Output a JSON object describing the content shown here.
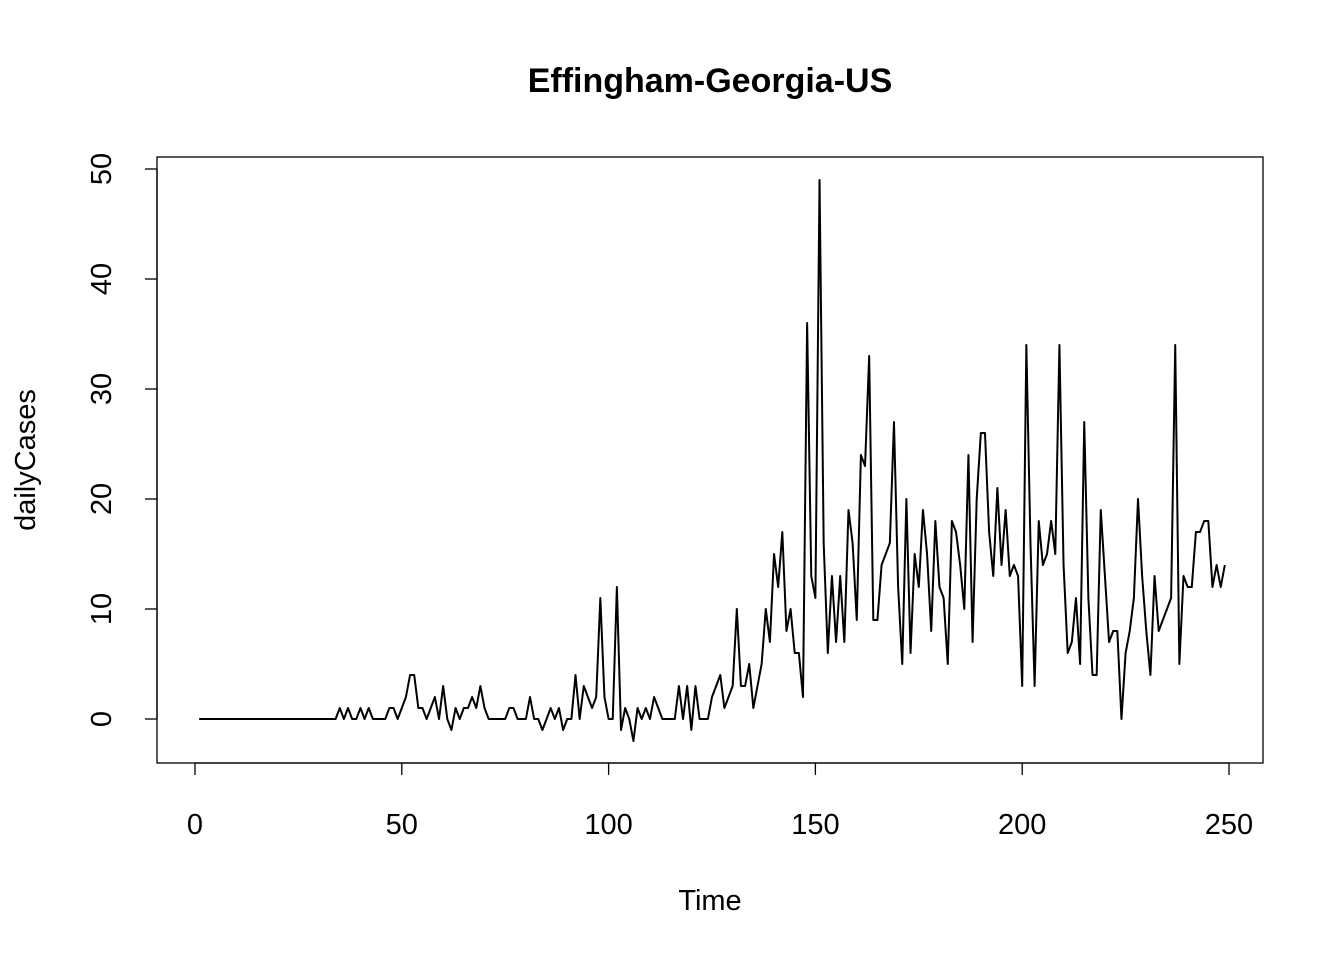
{
  "chart_data": {
    "type": "line",
    "title": "Effingham-Georgia-US",
    "xlabel": "Time",
    "ylabel": "dailyCases",
    "xlim": [
      0,
      250
    ],
    "ylim": [
      -4,
      50
    ],
    "x_ticks": [
      0,
      50,
      100,
      150,
      200,
      250
    ],
    "y_ticks": [
      0,
      10,
      20,
      30,
      40,
      50
    ],
    "x_tick_labels": [
      "0",
      "50",
      "100",
      "150",
      "200",
      "250"
    ],
    "y_tick_labels": [
      "0",
      "10",
      "20",
      "30",
      "40",
      "50"
    ],
    "grid": false,
    "legend": "none",
    "line_color": "#000000",
    "series": [
      {
        "x_start": 1,
        "x_step": 1,
        "values": [
          0,
          0,
          0,
          0,
          0,
          0,
          0,
          0,
          0,
          0,
          0,
          0,
          0,
          0,
          0,
          0,
          0,
          0,
          0,
          0,
          0,
          0,
          0,
          0,
          0,
          0,
          0,
          0,
          0,
          0,
          0,
          0,
          0,
          0,
          1,
          0,
          1,
          0,
          0,
          1,
          0,
          1,
          0,
          0,
          0,
          0,
          1,
          1,
          0,
          1,
          2,
          4,
          4,
          1,
          1,
          0,
          1,
          2,
          0,
          3,
          0,
          -1,
          1,
          0,
          1,
          1,
          2,
          1,
          3,
          1,
          0,
          0,
          0,
          0,
          0,
          1,
          1,
          0,
          0,
          0,
          2,
          0,
          0,
          -1,
          0,
          1,
          0,
          1,
          -1,
          0,
          0,
          4,
          0,
          3,
          2,
          1,
          2,
          11,
          2,
          0,
          0,
          12,
          -1,
          1,
          0,
          -2,
          1,
          0,
          1,
          0,
          2,
          1,
          0,
          0,
          0,
          0,
          3,
          0,
          3,
          -1,
          3,
          0,
          0,
          0,
          2,
          3,
          4,
          1,
          2,
          3,
          10,
          3,
          3,
          5,
          1,
          3,
          5,
          10,
          7,
          15,
          12,
          17,
          8,
          10,
          6,
          6,
          2,
          36,
          13,
          11,
          49,
          16,
          6,
          13,
          7,
          13,
          7,
          19,
          16,
          9,
          24,
          23,
          33,
          9,
          9,
          14,
          15,
          16,
          27,
          12,
          5,
          20,
          6,
          15,
          12,
          19,
          15,
          8,
          18,
          12,
          11,
          5,
          18,
          17,
          14,
          10,
          24,
          7,
          20,
          26,
          26,
          17,
          13,
          21,
          14,
          19,
          13,
          14,
          13,
          3,
          34,
          16,
          3,
          18,
          14,
          15,
          18,
          15,
          34,
          14,
          6,
          7,
          11,
          5,
          27,
          11,
          4,
          4,
          19,
          13,
          7,
          8,
          8,
          0,
          6,
          8,
          11,
          20,
          13,
          8,
          4,
          13,
          8,
          9,
          10,
          11,
          34,
          5,
          13,
          12,
          12,
          17,
          17,
          18,
          18,
          12,
          14,
          12,
          14
        ]
      }
    ]
  }
}
